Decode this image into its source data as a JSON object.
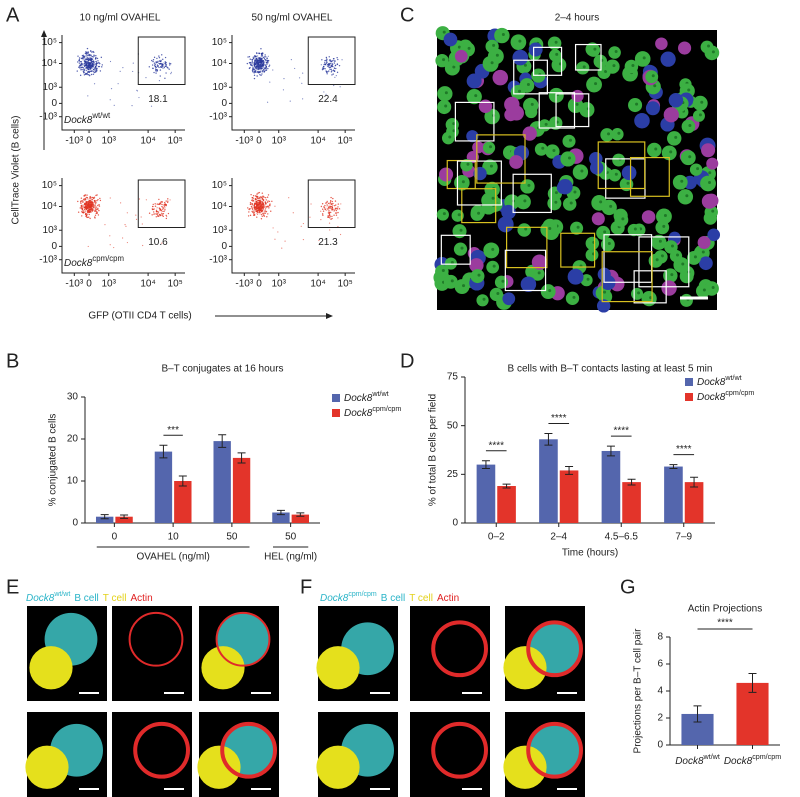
{
  "panel_labels": [
    "A",
    "B",
    "C",
    "D",
    "E",
    "F",
    "G"
  ],
  "panel_a": {
    "columns": [
      "10 ng/ml OVAHEL",
      "50 ng/ml OVAHEL"
    ],
    "rows": [
      {
        "gene": "Dock8",
        "genotype": "wt/wt",
        "color": "#2a3a9c"
      },
      {
        "gene": "Dock8",
        "genotype": "cpm/cpm",
        "color": "#e03322"
      }
    ],
    "gate_values": [
      [
        18.1,
        22.4
      ],
      [
        10.6,
        21.3
      ]
    ],
    "y_ticks": [
      "10⁵",
      "10⁴",
      "10³",
      "0",
      "-10³"
    ],
    "x_ticks": [
      "-10³",
      "0",
      "10³",
      "10⁴",
      "10⁵"
    ],
    "y_label": "CellTrace Violet (B cells)",
    "x_label": "GFP (OTII CD4 T cells)"
  },
  "panel_c": {
    "title": "2–4 hours"
  },
  "panel_e": {
    "gene": "Dock8",
    "genotype": "wt/wt",
    "legend": [
      "B cell",
      "T cell",
      "Actin"
    ]
  },
  "panel_f": {
    "gene": "Dock8",
    "genotype": "cpm/cpm",
    "legend": [
      "B cell",
      "T cell",
      "Actin"
    ]
  },
  "chart_data": [
    {
      "type": "bar",
      "title": "B–T conjugates at 16 hours",
      "ylabel": "% conjugated B cells",
      "categories": [
        "0",
        "10",
        "50",
        "50"
      ],
      "category_groups": [
        "OVAHEL (ng/ml)",
        "HEL (ng/ml)"
      ],
      "series": [
        {
          "name": "Dock8",
          "name_sup": "wt/wt",
          "color": "#5466ad",
          "values": [
            1.5,
            17,
            19.5,
            2.5
          ],
          "errors": [
            0.5,
            1.5,
            1.5,
            0.5
          ]
        },
        {
          "name": "Dock8",
          "name_sup": "cpm/cpm",
          "color": "#e3342a",
          "values": [
            1.5,
            10,
            15.5,
            2
          ],
          "errors": [
            0.4,
            1.2,
            1.2,
            0.4
          ]
        }
      ],
      "significance": [
        null,
        "***",
        null,
        null
      ],
      "ylim": [
        0,
        30
      ],
      "yticks": [
        0,
        10,
        20,
        30
      ]
    },
    {
      "type": "bar",
      "title": "B cells with B–T contacts lasting at least 5 min",
      "ylabel": "% of total B cells per field",
      "xlabel": "Time (hours)",
      "categories": [
        "0–2",
        "2–4",
        "4.5–6.5",
        "7–9"
      ],
      "series": [
        {
          "name": "Dock8",
          "name_sup": "wt/wt",
          "color": "#5466ad",
          "values": [
            30,
            43,
            37,
            29
          ],
          "errors": [
            2,
            3,
            2.5,
            1
          ]
        },
        {
          "name": "Dock8",
          "name_sup": "cpm/cpm",
          "color": "#e3342a",
          "values": [
            19,
            27,
            21,
            21
          ],
          "errors": [
            1,
            2,
            1.5,
            2.5
          ]
        }
      ],
      "significance": [
        "****",
        "****",
        "****",
        "****"
      ],
      "ylim": [
        0,
        75
      ],
      "yticks": [
        0,
        25,
        50,
        75
      ]
    },
    {
      "type": "bar",
      "title": "Actin Projections",
      "ylabel": "Projections per B–T cell pair",
      "categories": [
        "Dock8",
        "Dock8"
      ],
      "category_sups": [
        "wt/wt",
        "cpm/cpm"
      ],
      "series": [
        {
          "colors": [
            "#5466ad",
            "#e3342a"
          ],
          "values": [
            2.3,
            4.6
          ],
          "errors": [
            0.6,
            0.7
          ]
        }
      ],
      "significance_pair": "****",
      "ylim": [
        0,
        8
      ],
      "yticks": [
        0,
        2,
        4,
        6,
        8
      ]
    }
  ]
}
